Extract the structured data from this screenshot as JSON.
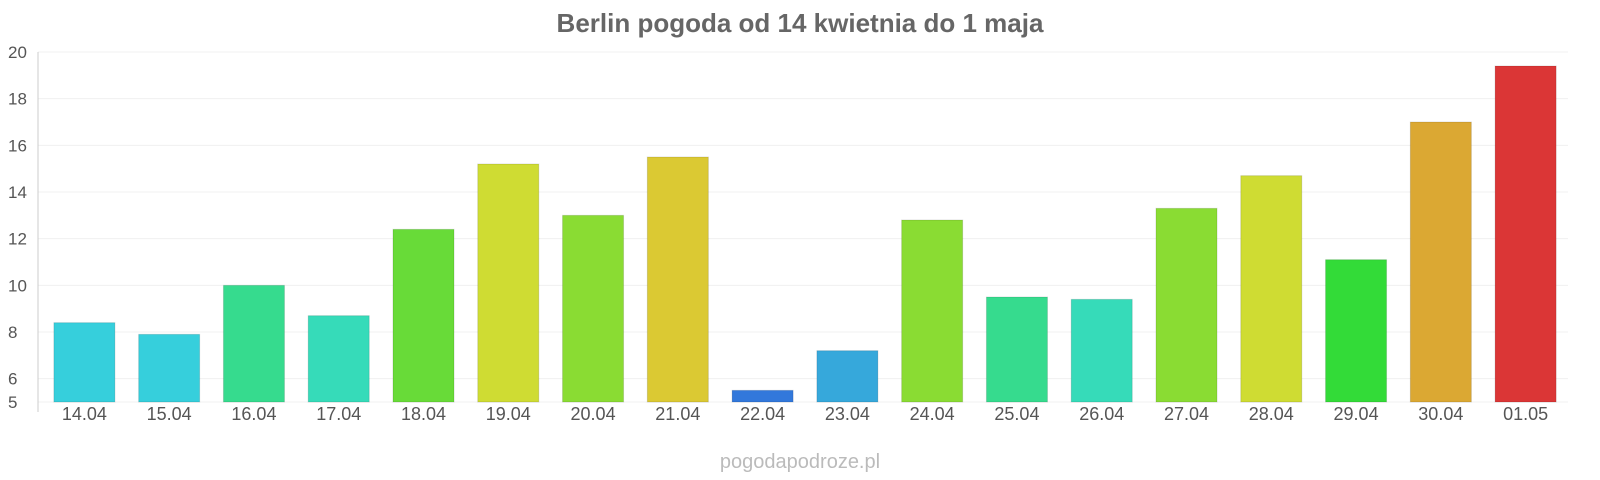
{
  "chart_data": {
    "type": "bar",
    "title": "Berlin pogoda od 14 kwietnia do 1 maja",
    "xlabel": "",
    "ylabel": "",
    "ylim": [
      5,
      20
    ],
    "yticks": [
      5,
      6,
      8,
      10,
      12,
      14,
      16,
      18,
      20
    ],
    "grid": true,
    "categories": [
      "14.04",
      "15.04",
      "16.04",
      "17.04",
      "18.04",
      "19.04",
      "20.04",
      "21.04",
      "22.04",
      "23.04",
      "24.04",
      "25.04",
      "26.04",
      "27.04",
      "28.04",
      "29.04",
      "30.04",
      "01.05"
    ],
    "values": [
      8.4,
      7.9,
      10.0,
      8.7,
      12.4,
      15.2,
      13.0,
      15.5,
      5.5,
      7.2,
      12.8,
      9.5,
      9.4,
      13.3,
      14.7,
      11.1,
      17.0,
      19.4
    ],
    "colors": [
      "#36cfdc",
      "#36cfdc",
      "#36db8e",
      "#36dbb9",
      "#68db38",
      "#cfdc33",
      "#8adc33",
      "#dbc933",
      "#3278db",
      "#36a8db",
      "#8adc33",
      "#36db8e",
      "#36dbb9",
      "#8adc33",
      "#cfdc33",
      "#33db38",
      "#dba833",
      "#db3636"
    ]
  },
  "watermark": "pogodapodroze.pl"
}
